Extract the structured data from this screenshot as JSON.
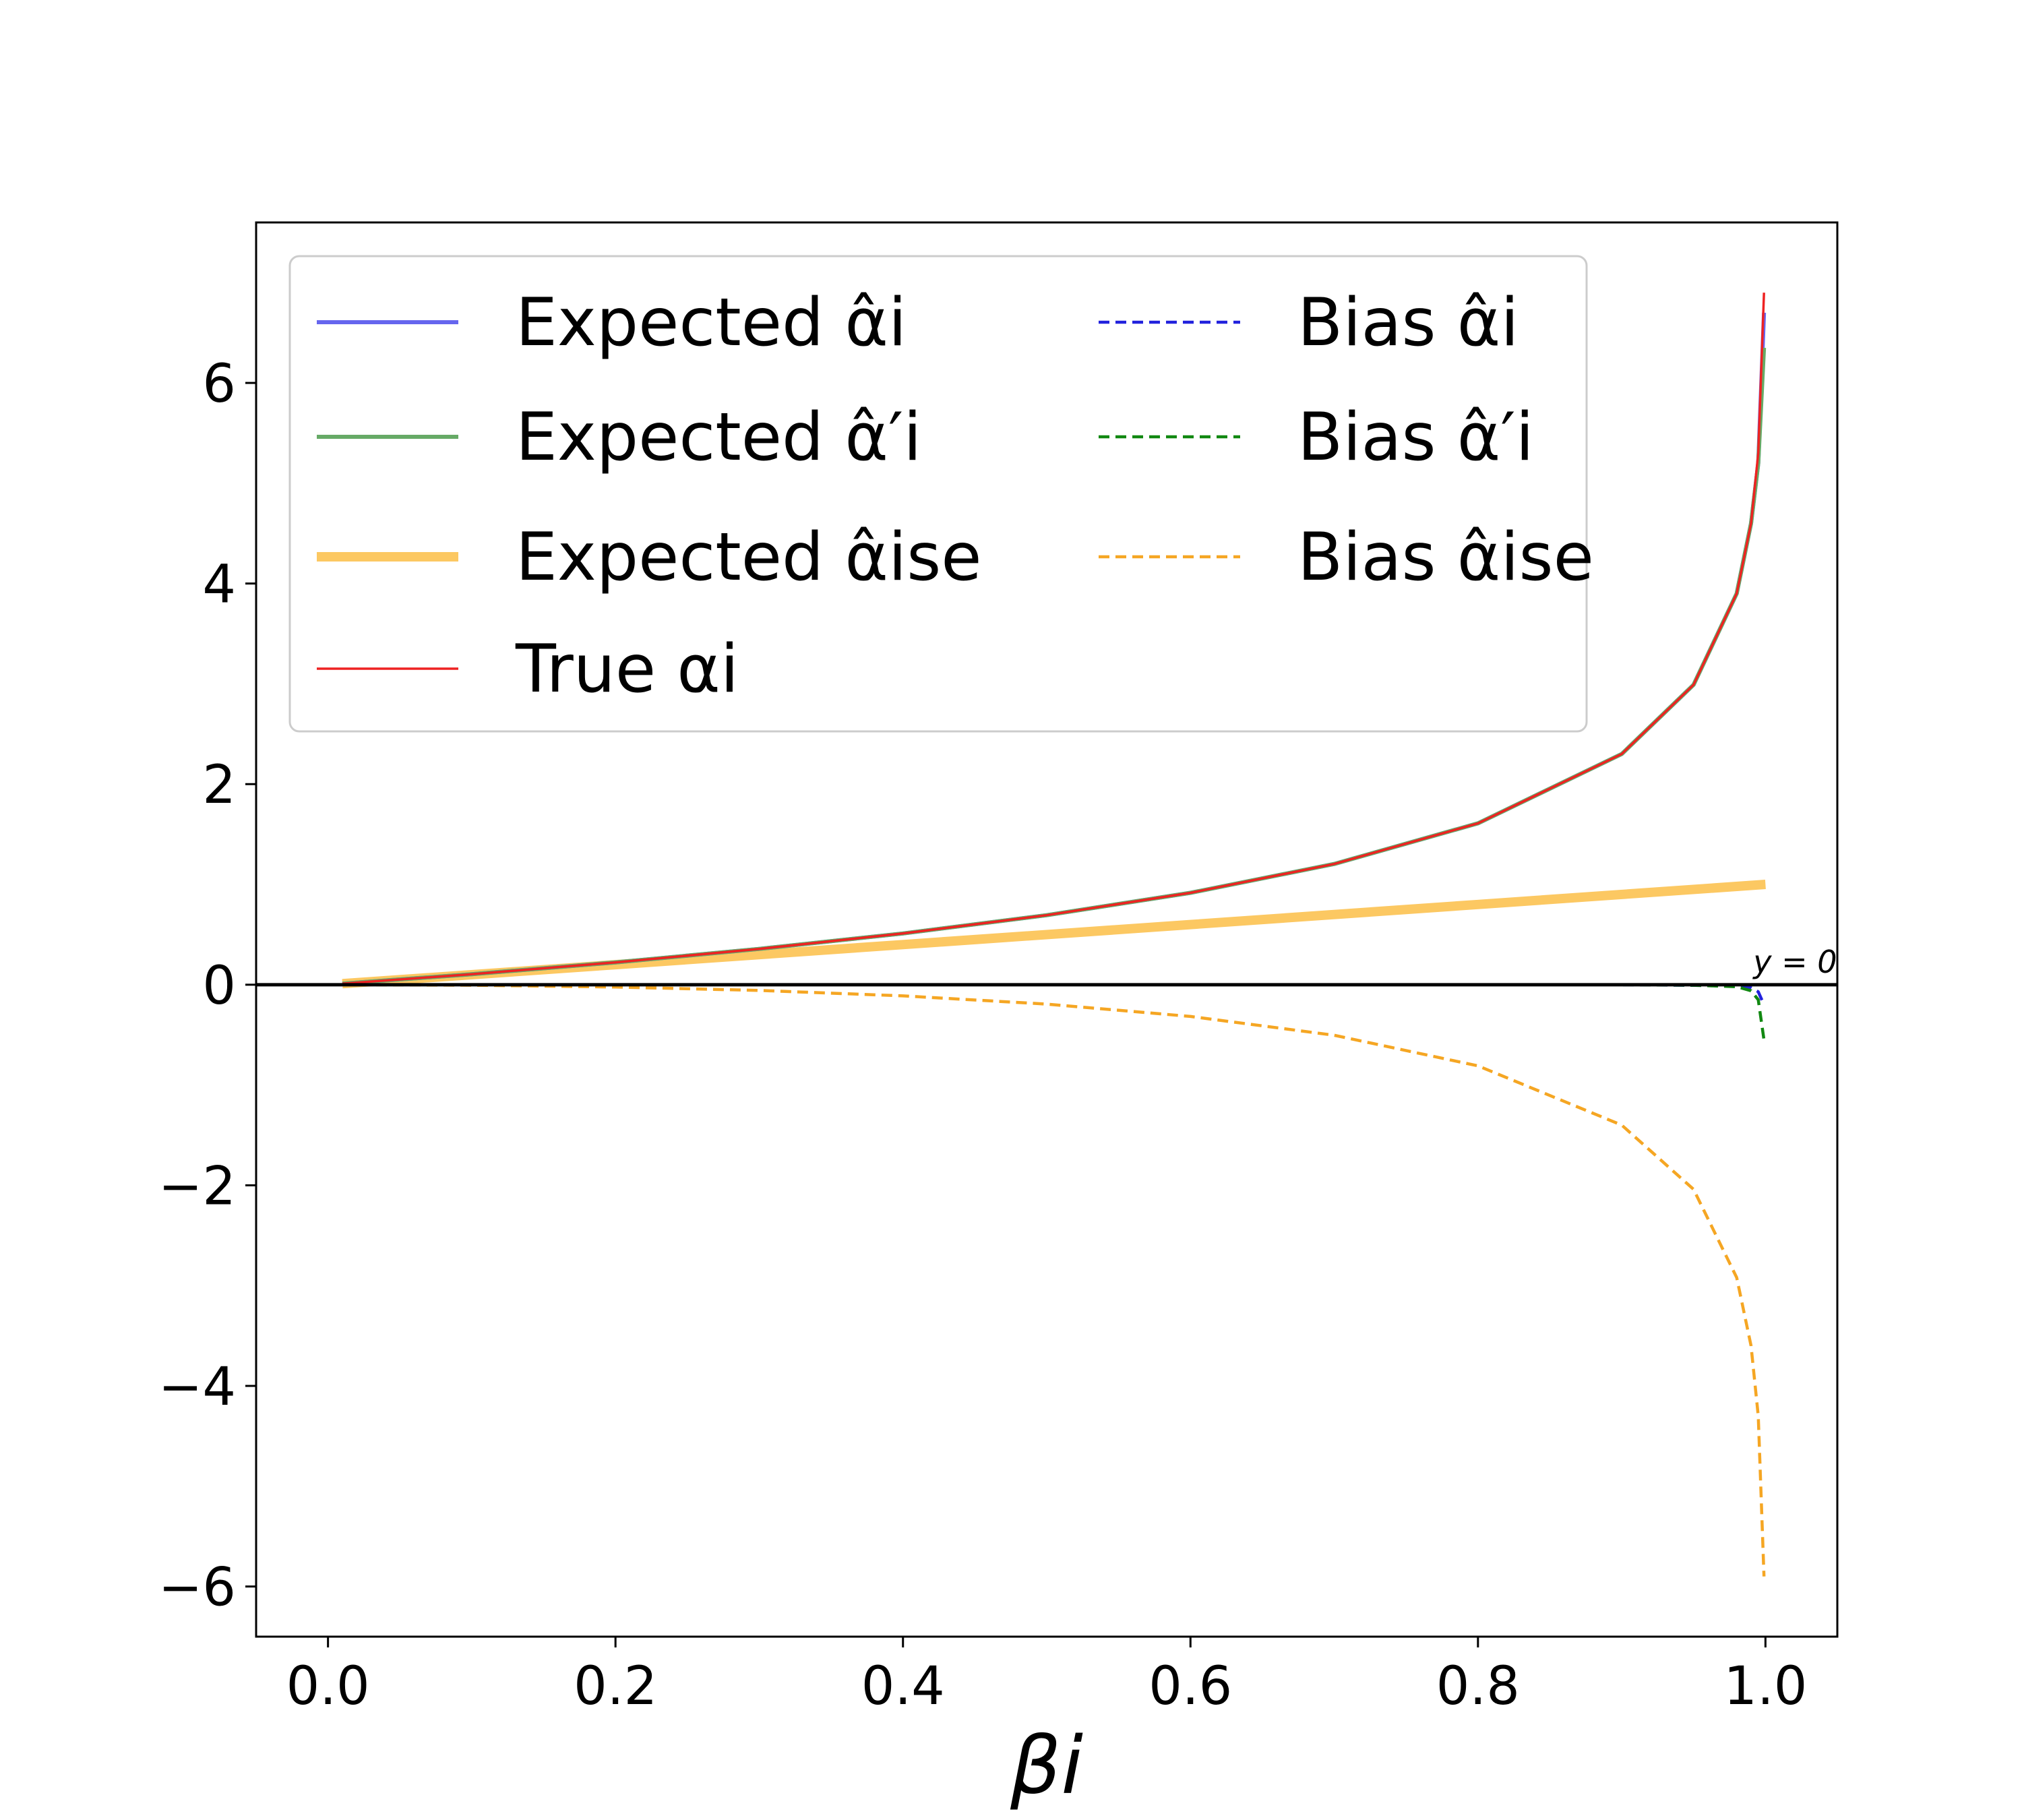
{
  "chart_data": {
    "type": "line",
    "title": "",
    "xlabel": "βi",
    "ylabel": "",
    "xlim": [
      -0.05,
      1.05
    ],
    "ylim": [
      -6.5,
      7.6
    ],
    "x_ticks": [
      0.0,
      0.2,
      0.4,
      0.6,
      0.8,
      1.0
    ],
    "x_tick_labels": [
      "0.0",
      "0.2",
      "0.4",
      "0.6",
      "0.8",
      "1.0"
    ],
    "y_ticks": [
      -6,
      -4,
      -2,
      0,
      2,
      4,
      6
    ],
    "y_tick_labels": [
      "−6",
      "−4",
      "−2",
      "0",
      "2",
      "4",
      "6"
    ],
    "grid": false,
    "legend_position": "upper-left",
    "legend_columns": 2,
    "reference_line": {
      "y": 0,
      "label": "y = 0",
      "color": "#000000"
    },
    "series": [
      {
        "name": "Expected α̂i",
        "color": "#6666ee",
        "style": "solid",
        "x": [
          0.01,
          0.1,
          0.2,
          0.3,
          0.4,
          0.5,
          0.6,
          0.7,
          0.8,
          0.9,
          0.95,
          0.98,
          0.99,
          0.995,
          0.999
        ],
        "y": [
          0.01,
          0.105,
          0.223,
          0.357,
          0.511,
          0.693,
          0.916,
          1.204,
          1.609,
          2.3,
          2.99,
          3.9,
          4.6,
          5.2,
          6.7
        ]
      },
      {
        "name": "Expected α̂′i",
        "color": "#66aa66",
        "style": "solid",
        "x": [
          0.01,
          0.1,
          0.2,
          0.3,
          0.4,
          0.5,
          0.6,
          0.7,
          0.8,
          0.9,
          0.95,
          0.98,
          0.99,
          0.995,
          0.999
        ],
        "y": [
          0.01,
          0.105,
          0.223,
          0.357,
          0.511,
          0.693,
          0.916,
          1.204,
          1.609,
          2.3,
          2.99,
          3.9,
          4.6,
          5.2,
          6.35
        ]
      },
      {
        "name": "Expected α̂ise",
        "color": "#fcc862",
        "style": "solid-thick",
        "x": [
          0.01,
          0.2,
          0.4,
          0.6,
          0.8,
          1.0
        ],
        "y": [
          0.01,
          0.2,
          0.4,
          0.6,
          0.8,
          1.0
        ]
      },
      {
        "name": "True αi",
        "color": "#ee2222",
        "style": "solid-thin",
        "x": [
          0.01,
          0.1,
          0.2,
          0.3,
          0.4,
          0.5,
          0.6,
          0.7,
          0.8,
          0.9,
          0.95,
          0.98,
          0.99,
          0.995,
          0.999
        ],
        "y": [
          0.01,
          0.105,
          0.223,
          0.357,
          0.511,
          0.693,
          0.916,
          1.204,
          1.609,
          2.3,
          2.99,
          3.9,
          4.6,
          5.3,
          6.9
        ]
      },
      {
        "name": "Bias α̂i",
        "color": "#2222dd",
        "style": "dashed",
        "x": [
          0.01,
          0.5,
          0.9,
          0.98,
          0.99,
          0.995,
          0.999
        ],
        "y": [
          0.0,
          0.0,
          0.0,
          -0.01,
          -0.03,
          -0.07,
          -0.2
        ]
      },
      {
        "name": "Bias α̂′i",
        "color": "#118811",
        "style": "dashed",
        "x": [
          0.01,
          0.5,
          0.9,
          0.95,
          0.98,
          0.99,
          0.995,
          0.999
        ],
        "y": [
          0.0,
          0.0,
          0.0,
          -0.005,
          -0.02,
          -0.06,
          -0.15,
          -0.55
        ]
      },
      {
        "name": "Bias α̂ise",
        "color": "#f5a623",
        "style": "dashed",
        "x": [
          0.01,
          0.1,
          0.2,
          0.3,
          0.4,
          0.5,
          0.6,
          0.7,
          0.8,
          0.9,
          0.95,
          0.98,
          0.99,
          0.995,
          0.999
        ],
        "y": [
          0.0,
          -0.005,
          -0.023,
          -0.057,
          -0.111,
          -0.193,
          -0.316,
          -0.504,
          -0.809,
          -1.4,
          -2.04,
          -2.92,
          -3.6,
          -4.3,
          -5.9
        ]
      }
    ]
  }
}
